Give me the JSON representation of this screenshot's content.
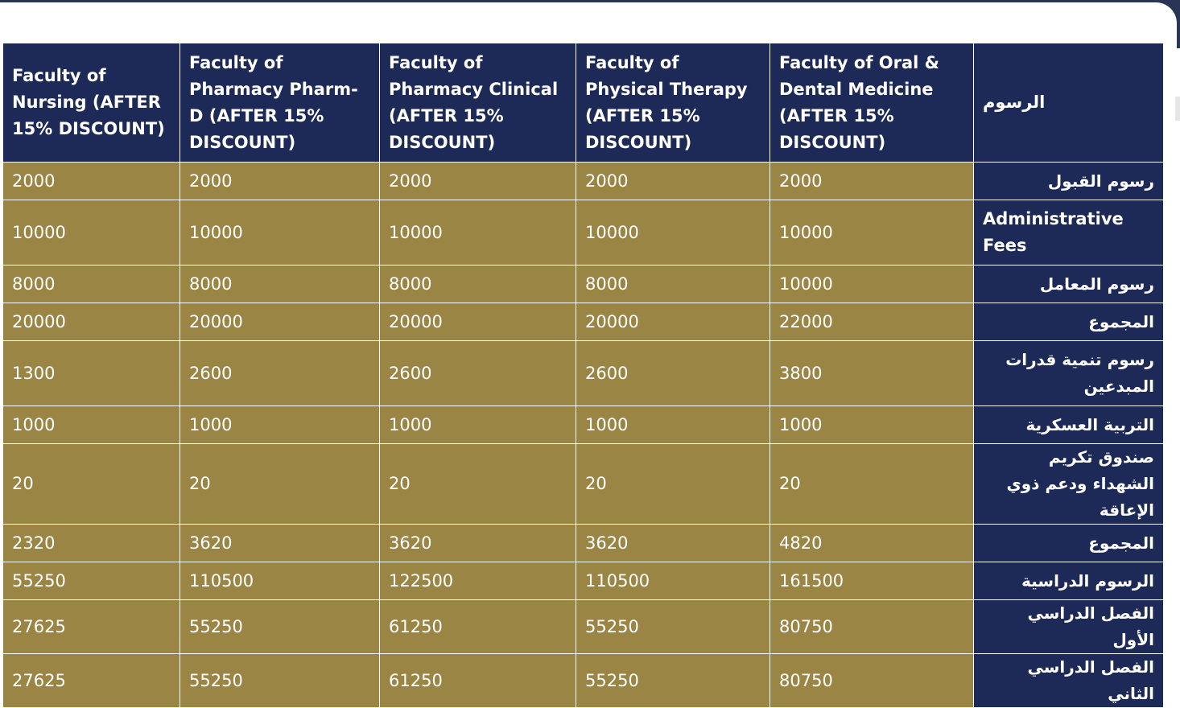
{
  "colors": {
    "header_bg": "#1d2a57",
    "cell_bg": "#9a8544",
    "text": "#ffffff"
  },
  "table": {
    "headers": [
      "Faculty of Nursing (AFTER 15% DISCOUNT)",
      "Faculty of Pharmacy Pharm-D (AFTER 15% DISCOUNT)",
      "Faculty of Pharmacy Clinical (AFTER 15% DISCOUNT)",
      "Faculty of Physical Therapy (AFTER 15% DISCOUNT)",
      "Faculty of Oral & Dental Medicine (AFTER 15% DISCOUNT)",
      "الرسوم"
    ],
    "rows": [
      {
        "values": [
          "2000",
          "2000",
          "2000",
          "2000",
          "2000"
        ],
        "label": "رسوم القبول"
      },
      {
        "values": [
          "10000",
          "10000",
          "10000",
          "10000",
          "10000"
        ],
        "label": "Administrative Fees"
      },
      {
        "values": [
          "8000",
          "8000",
          "8000",
          "8000",
          "10000"
        ],
        "label": "رسوم المعامل"
      },
      {
        "values": [
          "20000",
          "20000",
          "20000",
          "20000",
          "22000"
        ],
        "label": "المجموع"
      },
      {
        "values": [
          "1300",
          "2600",
          "2600",
          "2600",
          "3800"
        ],
        "label": "رسوم تنمية قدرات المبدعين"
      },
      {
        "values": [
          "1000",
          "1000",
          "1000",
          "1000",
          "1000"
        ],
        "label": "التربية العسكرية"
      },
      {
        "values": [
          "20",
          "20",
          "20",
          "20",
          "20"
        ],
        "label": "صندوق تكريم الشهداء ودعم ذوي الإعاقة"
      },
      {
        "values": [
          "2320",
          "3620",
          "3620",
          "3620",
          "4820"
        ],
        "label": "المجموع"
      },
      {
        "values": [
          "55250",
          "110500",
          "122500",
          "110500",
          "161500"
        ],
        "label": "الرسوم الدراسية"
      },
      {
        "values": [
          "27625",
          "55250",
          "61250",
          "55250",
          "80750"
        ],
        "label": "الفصل الدراسي الأول"
      },
      {
        "values": [
          "27625",
          "55250",
          "61250",
          "55250",
          "80750"
        ],
        "label": "الفصل الدراسي الثاني"
      }
    ]
  }
}
